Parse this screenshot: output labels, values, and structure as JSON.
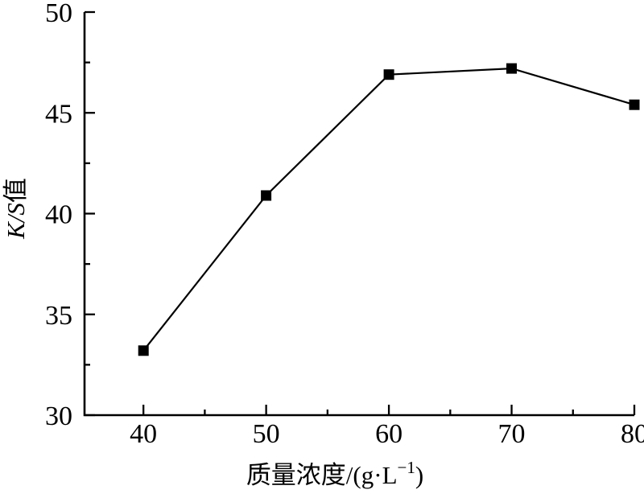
{
  "figure": {
    "background_color": "#ffffff",
    "description": "Line chart of K/S value versus dye mass concentration"
  },
  "chart_data": {
    "type": "line",
    "x": [
      40,
      50,
      60,
      70,
      80
    ],
    "series": [
      {
        "name": "K/S",
        "values": [
          33.2,
          40.9,
          46.9,
          47.2,
          45.4
        ]
      }
    ],
    "title": "",
    "xlabel": "质量浓度/(g·L⁻¹)",
    "xlabel_parts": {
      "base": "质量浓度/(g·L",
      "sup": "−1",
      "end": ")"
    },
    "ylabel": "K/S值",
    "ylabel_parts": {
      "italic": "K/S",
      "normal": "值"
    },
    "xlim": [
      35.2,
      80
    ],
    "ylim": [
      30,
      50
    ],
    "x_major_ticks": [
      40,
      50,
      60,
      70,
      80
    ],
    "x_minor_ticks": [
      45,
      55,
      65,
      75
    ],
    "y_major_ticks": [
      30,
      35,
      40,
      45,
      50
    ],
    "y_minor_ticks": [
      32.5,
      37.5,
      42.5,
      47.5
    ],
    "grid": false,
    "legend_position": "none",
    "marker": "filled-square",
    "line_color": "#000000",
    "marker_color": "#000000",
    "axis_color": "#000000",
    "text_color": "#000000"
  }
}
